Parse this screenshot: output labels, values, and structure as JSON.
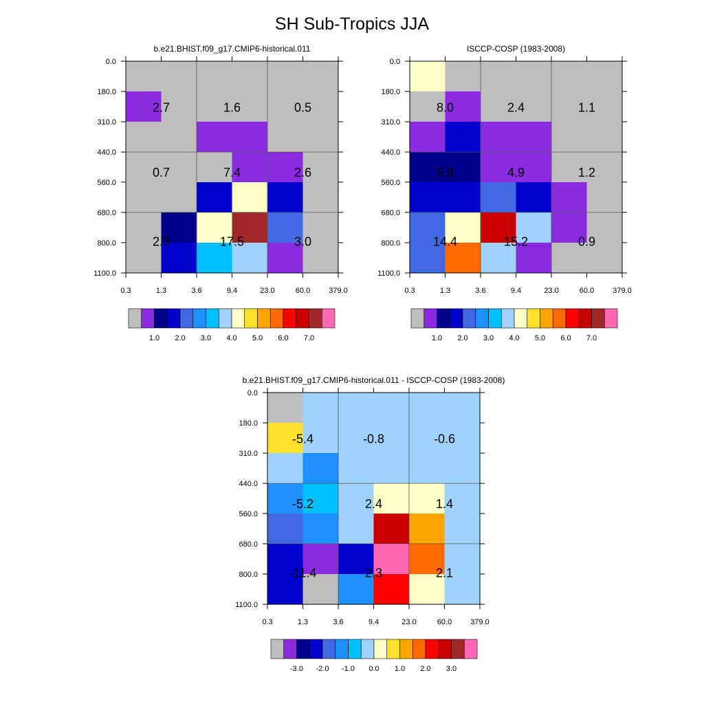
{
  "title": "SH Sub-Tropics JJA",
  "chart_data": [
    {
      "type": "heatmap",
      "title": "b.e21.BHIST.f09_g17.CMIP6-historical.011",
      "x_ticks": [
        "0.3",
        "1.3",
        "3.6",
        "9.4",
        "23.0",
        "60.0",
        "379.0"
      ],
      "y_ticks": [
        "0.0",
        "180.0",
        "310.0",
        "440.0",
        "560.0",
        "680.0",
        "800.0",
        "1100.0"
      ],
      "cell_color_index": [
        [
          0,
          0,
          0,
          0,
          0,
          0
        ],
        [
          1,
          0,
          0,
          0,
          0,
          0
        ],
        [
          0,
          0,
          1,
          1,
          0,
          0
        ],
        [
          0,
          0,
          0,
          1,
          1,
          0
        ],
        [
          0,
          0,
          3,
          8,
          3,
          0
        ],
        [
          0,
          2,
          8,
          14,
          4,
          0
        ],
        [
          0,
          3,
          6,
          7,
          1,
          0
        ]
      ],
      "group_labels": [
        {
          "row": 0,
          "col": 0,
          "text": "2.7"
        },
        {
          "row": 0,
          "col": 1,
          "text": "1.6"
        },
        {
          "row": 0,
          "col": 2,
          "text": "0.5"
        },
        {
          "row": 1,
          "col": 0,
          "text": "0.7"
        },
        {
          "row": 1,
          "col": 1,
          "text": "7.4"
        },
        {
          "row": 1,
          "col": 2,
          "text": "2.6"
        },
        {
          "row": 2,
          "col": 0,
          "text": "2.9"
        },
        {
          "row": 2,
          "col": 1,
          "text": "17.5"
        },
        {
          "row": 2,
          "col": 2,
          "text": "3.0"
        }
      ],
      "colorbar": {
        "colors": [
          "#bebebe",
          "#8a2be2",
          "#00008b",
          "#0000cd",
          "#4169e1",
          "#1e90ff",
          "#00bfff",
          "#a0d2ff",
          "#ffffc8",
          "#ffe12d",
          "#ffa500",
          "#ff6a00",
          "#ff0000",
          "#c80000",
          "#a02828",
          "#ff69b4"
        ],
        "labels": [
          "1.0",
          "2.0",
          "3.0",
          "4.0",
          "5.0",
          "6.0",
          "7.0"
        ]
      }
    },
    {
      "type": "heatmap",
      "title": "ISCCP-COSP (1983-2008)",
      "x_ticks": [
        "0.3",
        "1.3",
        "3.6",
        "9.4",
        "23.0",
        "60.0",
        "379.0"
      ],
      "y_ticks": [
        "0.0",
        "180.0",
        "310.0",
        "440.0",
        "560.0",
        "680.0",
        "800.0",
        "1100.0"
      ],
      "cell_color_index": [
        [
          8,
          0,
          0,
          0,
          0,
          0
        ],
        [
          0,
          1,
          0,
          0,
          0,
          0
        ],
        [
          1,
          3,
          1,
          1,
          0,
          0
        ],
        [
          2,
          2,
          1,
          1,
          0,
          0
        ],
        [
          3,
          3,
          4,
          3,
          1,
          0
        ],
        [
          4,
          8,
          13,
          7,
          1,
          0
        ],
        [
          4,
          11,
          7,
          1,
          0,
          0
        ]
      ],
      "group_labels": [
        {
          "row": 0,
          "col": 0,
          "text": "8.0"
        },
        {
          "row": 0,
          "col": 1,
          "text": "2.4"
        },
        {
          "row": 0,
          "col": 2,
          "text": "1.1"
        },
        {
          "row": 1,
          "col": 0,
          "text": "5.9"
        },
        {
          "row": 1,
          "col": 1,
          "text": "4.9"
        },
        {
          "row": 1,
          "col": 2,
          "text": "1.2"
        },
        {
          "row": 2,
          "col": 0,
          "text": "14.4"
        },
        {
          "row": 2,
          "col": 1,
          "text": "15.2"
        },
        {
          "row": 2,
          "col": 2,
          "text": "0.9"
        }
      ],
      "colorbar": {
        "colors": [
          "#bebebe",
          "#8a2be2",
          "#00008b",
          "#0000cd",
          "#4169e1",
          "#1e90ff",
          "#00bfff",
          "#a0d2ff",
          "#ffffc8",
          "#ffe12d",
          "#ffa500",
          "#ff6a00",
          "#ff0000",
          "#c80000",
          "#a02828",
          "#ff69b4"
        ],
        "labels": [
          "1.0",
          "2.0",
          "3.0",
          "4.0",
          "5.0",
          "6.0",
          "7.0"
        ]
      }
    },
    {
      "type": "heatmap",
      "title": "b.e21.BHIST.f09_g17.CMIP6-historical.011 - ISCCP-COSP (1983-2008)",
      "x_ticks": [
        "0.3",
        "1.3",
        "3.6",
        "9.4",
        "23.0",
        "60.0",
        "379.0"
      ],
      "y_ticks": [
        "0.0",
        "180.0",
        "310.0",
        "440.0",
        "560.0",
        "680.0",
        "800.0",
        "1100.0"
      ],
      "cell_color_index": [
        [
          0,
          7,
          7,
          7,
          7,
          7
        ],
        [
          9,
          7,
          7,
          7,
          7,
          7
        ],
        [
          7,
          5,
          7,
          7,
          7,
          7
        ],
        [
          5,
          6,
          7,
          8,
          8,
          7
        ],
        [
          4,
          5,
          7,
          13,
          10,
          7
        ],
        [
          3,
          1,
          3,
          15,
          11,
          7
        ],
        [
          3,
          0,
          5,
          12,
          8,
          7
        ]
      ],
      "group_labels": [
        {
          "row": 0,
          "col": 0,
          "text": "-5.4"
        },
        {
          "row": 0,
          "col": 1,
          "text": "-0.8"
        },
        {
          "row": 0,
          "col": 2,
          "text": "-0.6"
        },
        {
          "row": 1,
          "col": 0,
          "text": "-5.2"
        },
        {
          "row": 1,
          "col": 1,
          "text": "2.4"
        },
        {
          "row": 1,
          "col": 2,
          "text": "1.4"
        },
        {
          "row": 2,
          "col": 0,
          "text": "-11.4"
        },
        {
          "row": 2,
          "col": 1,
          "text": "2.3"
        },
        {
          "row": 2,
          "col": 2,
          "text": "2.1"
        }
      ],
      "colorbar": {
        "colors": [
          "#bebebe",
          "#8a2be2",
          "#00008b",
          "#0000cd",
          "#4169e1",
          "#1e90ff",
          "#00bfff",
          "#a0d2ff",
          "#ffffc8",
          "#ffe12d",
          "#ffa500",
          "#ff6a00",
          "#ff0000",
          "#c80000",
          "#a02828",
          "#ff69b4"
        ],
        "labels": [
          "-3.0",
          "-2.0",
          "-1.0",
          "0.0",
          "1.0",
          "2.0",
          "3.0"
        ]
      }
    }
  ]
}
